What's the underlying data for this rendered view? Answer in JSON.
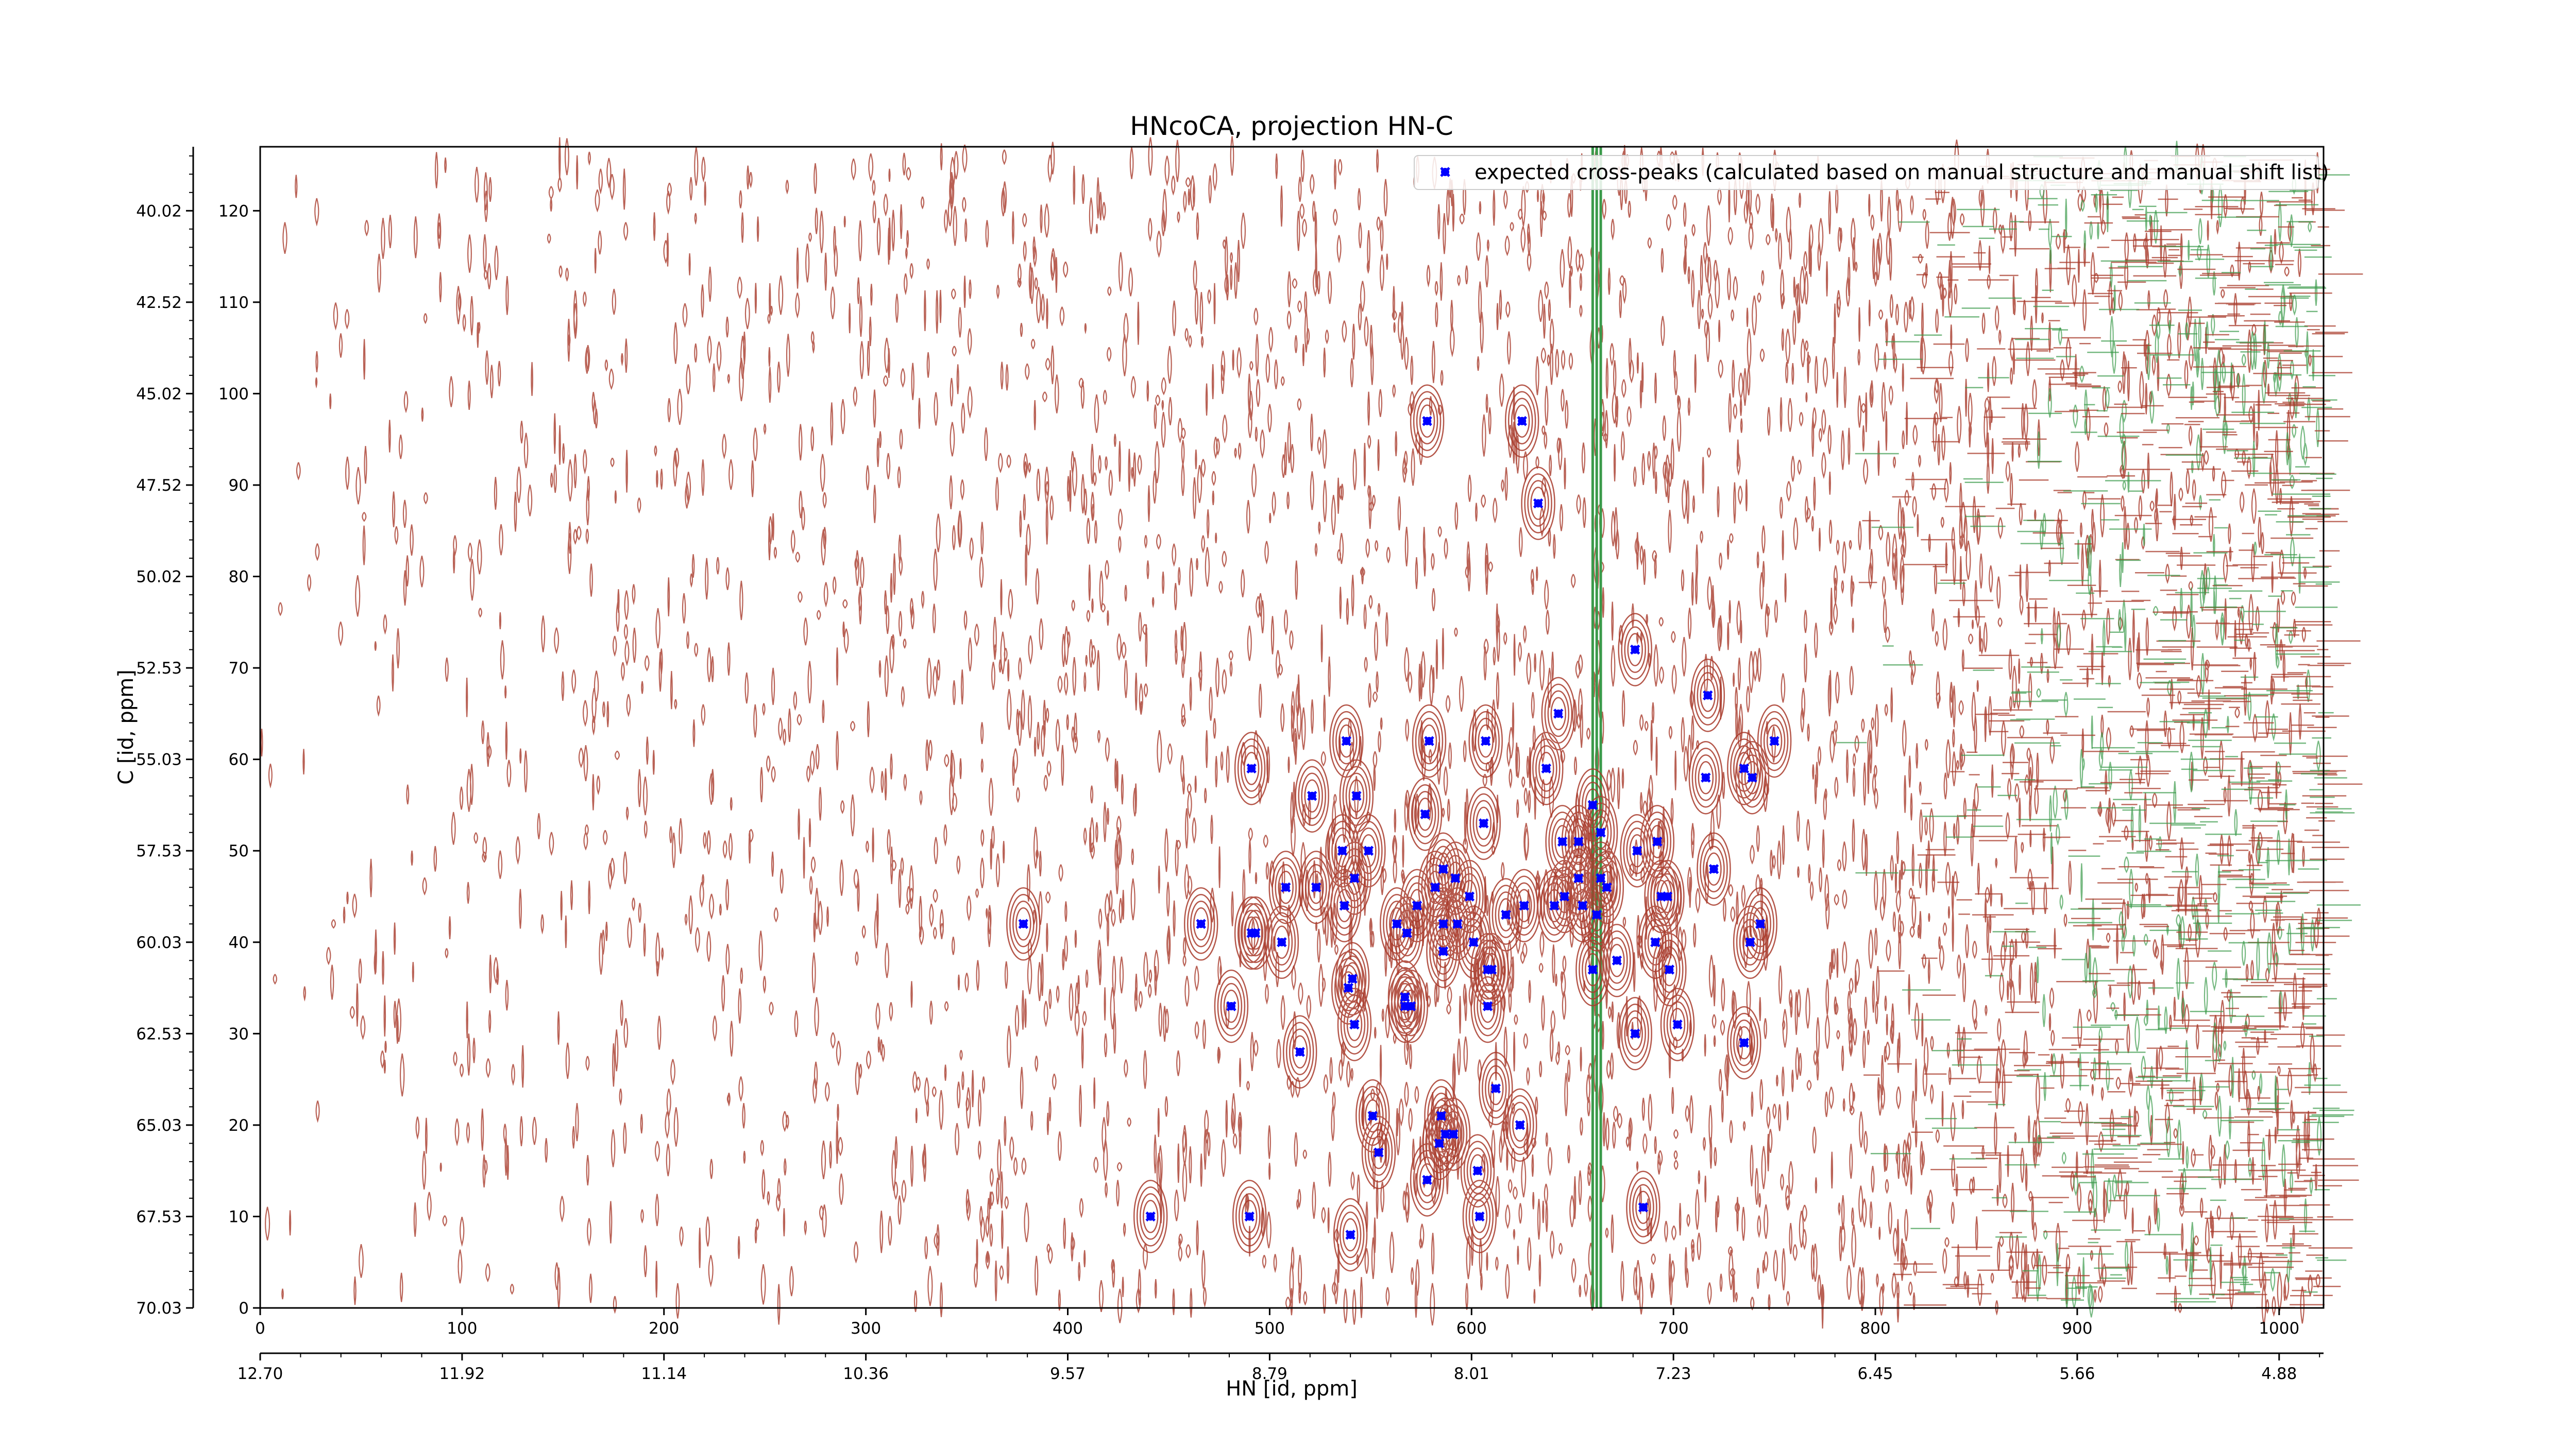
{
  "chart_data": {
    "type": "scatter",
    "title": "HNcoCA, projection HN-C",
    "xlabel": "HN [id, ppm]",
    "ylabel": "C [id, ppm]",
    "x_index_ticks": [
      "0",
      "100",
      "200",
      "300",
      "400",
      "500",
      "600",
      "700",
      "800",
      "900",
      "1000"
    ],
    "x_ppm_ticks": [
      "12.70",
      "11.92",
      "11.14",
      "10.36",
      "9.57",
      "8.79",
      "8.01",
      "7.23",
      "6.45",
      "5.66",
      "4.88"
    ],
    "y_index_ticks": [
      "0",
      "10",
      "20",
      "30",
      "40",
      "50",
      "60",
      "70",
      "80",
      "90",
      "100",
      "110",
      "120"
    ],
    "y_ppm_ticks": [
      "70.03",
      "67.53",
      "65.03",
      "62.53",
      "60.03",
      "57.53",
      "55.03",
      "52.53",
      "50.02",
      "47.52",
      "45.02",
      "42.52",
      "40.02"
    ],
    "xlim": [
      0,
      1022
    ],
    "ylim": [
      0,
      127
    ],
    "legend": {
      "position": "top-right",
      "entries": [
        {
          "label": "expected cross-peaks (calculated based on manual structure and manual shift list)",
          "color": "#0000ff",
          "marker": "x"
        }
      ]
    },
    "contour_colors": {
      "positive": "#a83a2a",
      "negative": "#3a9a4a"
    },
    "series": [
      {
        "name": "expected cross-peaks (calculated based on manual structure and manual shift list)",
        "color": "#0000ff",
        "points": [
          [
            578,
            97
          ],
          [
            625,
            97
          ],
          [
            633,
            88
          ],
          [
            681,
            72
          ],
          [
            717,
            67
          ],
          [
            750,
            62
          ],
          [
            607,
            62
          ],
          [
            579,
            62
          ],
          [
            538,
            62
          ],
          [
            491,
            59
          ],
          [
            637,
            59
          ],
          [
            735,
            59
          ],
          [
            739,
            58
          ],
          [
            716,
            58
          ],
          [
            643,
            65
          ],
          [
            521,
            56
          ],
          [
            543,
            56
          ],
          [
            577,
            54
          ],
          [
            606,
            53
          ],
          [
            660,
            55
          ],
          [
            645,
            51
          ],
          [
            664,
            52
          ],
          [
            653,
            51
          ],
          [
            682,
            50
          ],
          [
            692,
            51
          ],
          [
            536,
            50
          ],
          [
            549,
            50
          ],
          [
            586,
            48
          ],
          [
            592,
            47
          ],
          [
            582,
            46
          ],
          [
            542,
            47
          ],
          [
            599,
            45
          ],
          [
            720,
            48
          ],
          [
            653,
            47
          ],
          [
            664,
            47
          ],
          [
            646,
            45
          ],
          [
            667,
            46
          ],
          [
            694,
            45
          ],
          [
            697,
            45
          ],
          [
            523,
            46
          ],
          [
            508,
            46
          ],
          [
            537,
            44
          ],
          [
            573,
            44
          ],
          [
            617,
            43
          ],
          [
            626,
            44
          ],
          [
            641,
            44
          ],
          [
            655,
            44
          ],
          [
            662,
            43
          ],
          [
            466,
            42
          ],
          [
            491,
            41
          ],
          [
            493,
            41
          ],
          [
            506,
            40
          ],
          [
            563,
            42
          ],
          [
            568,
            41
          ],
          [
            568,
            41
          ],
          [
            586,
            42
          ],
          [
            593,
            42
          ],
          [
            378,
            42
          ],
          [
            743,
            42
          ],
          [
            586,
            39
          ],
          [
            601,
            40
          ],
          [
            608,
            37
          ],
          [
            610,
            37
          ],
          [
            672,
            38
          ],
          [
            698,
            37
          ],
          [
            660,
            37
          ],
          [
            691,
            40
          ],
          [
            738,
            40
          ],
          [
            541,
            36
          ],
          [
            539,
            35
          ],
          [
            567,
            34
          ],
          [
            608,
            33
          ],
          [
            481,
            33
          ],
          [
            567,
            33
          ],
          [
            570,
            33
          ],
          [
            542,
            31
          ],
          [
            702,
            31
          ],
          [
            681,
            30
          ],
          [
            735,
            29
          ],
          [
            515,
            28
          ],
          [
            612,
            24
          ],
          [
            551,
            21
          ],
          [
            585,
            21
          ],
          [
            624,
            20
          ],
          [
            587,
            19
          ],
          [
            591,
            19
          ],
          [
            584,
            18
          ],
          [
            554,
            17
          ],
          [
            603,
            15
          ],
          [
            578,
            14
          ],
          [
            441,
            10
          ],
          [
            490,
            10
          ],
          [
            604,
            10
          ],
          [
            685,
            11
          ],
          [
            540,
            8
          ]
        ]
      }
    ]
  }
}
